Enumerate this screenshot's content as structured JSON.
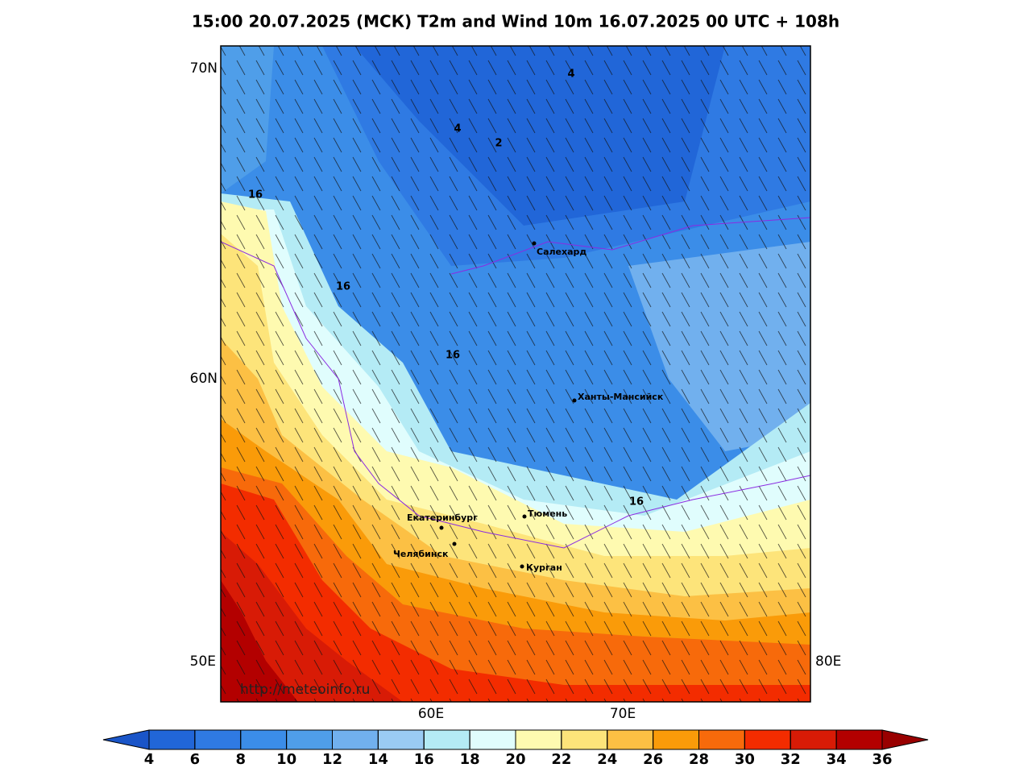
{
  "title": "15:00 20.07.2025 (МСК) T2m and Wind 10m 16.07.2025 00 UTC + 108h",
  "lat_labels": [
    "70N",
    "60N"
  ],
  "lon_labels": [
    "50E",
    "60E",
    "70E",
    "80E"
  ],
  "cities": [
    "Салехард",
    "Ханты-Мансийск",
    "Екатеринбург",
    "Тюмень",
    "Челябинск",
    "Курган"
  ],
  "contour_labels": [
    "4",
    "4",
    "2",
    "16",
    "16",
    "16",
    "16"
  ],
  "url": "http://meteoinfo.ru",
  "colorbar": {
    "ticks": [
      4,
      6,
      8,
      10,
      12,
      14,
      16,
      18,
      20,
      22,
      24,
      26,
      28,
      30,
      32,
      34,
      36
    ],
    "colors": [
      "#2166d8",
      "#2f7ae3",
      "#3b8de8",
      "#4f9ee9",
      "#71b0ee",
      "#9acbf3",
      "#b4ebf5",
      "#e0fdfd",
      "#fefab0",
      "#fde47a",
      "#fcc044",
      "#fa9b09",
      "#f76a0b",
      "#f32c00",
      "#d81b06",
      "#b30000"
    ],
    "under_color": "#1a55c8",
    "over_color": "#990000"
  }
}
